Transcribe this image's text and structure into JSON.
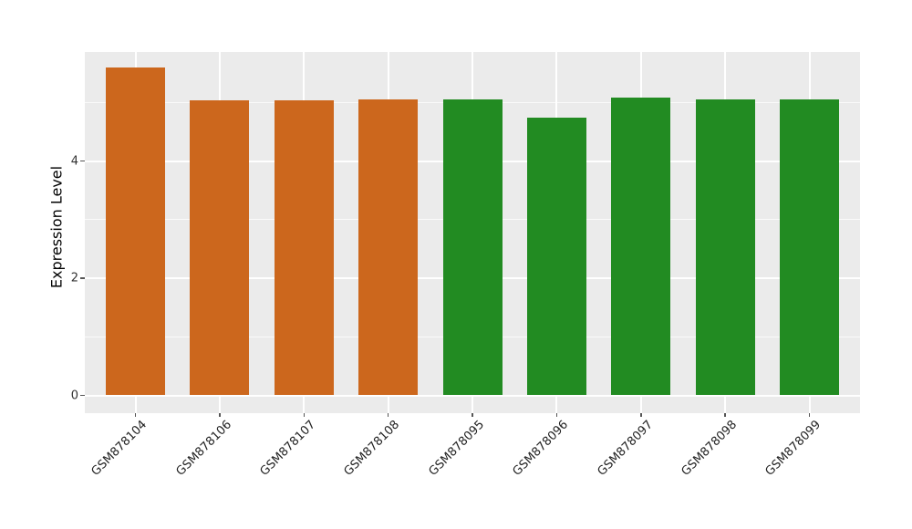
{
  "figure": {
    "background_color": "#ffffff",
    "panel_background_color": "#ebebeb",
    "grid_color": "#ffffff",
    "tick_color": "#555555",
    "tick_label_color": "#333333",
    "axis_title_color": "#000000"
  },
  "chart_data": {
    "type": "bar",
    "title": "",
    "xlabel": "",
    "ylabel": "Expression Level",
    "categories": [
      "GSM878104",
      "GSM878106",
      "GSM878107",
      "GSM878108",
      "GSM878095",
      "GSM878096",
      "GSM878097",
      "GSM878098",
      "GSM878099"
    ],
    "values": [
      5.6,
      5.04,
      5.04,
      5.05,
      5.06,
      4.74,
      5.08,
      5.05,
      5.05
    ],
    "bar_colors": [
      "#cc671d",
      "#cc671d",
      "#cc671d",
      "#cc671d",
      "#228b22",
      "#228b22",
      "#228b22",
      "#228b22",
      "#228b22"
    ],
    "color_groups": [
      {
        "color": "#cc671d",
        "categories": [
          "GSM878104",
          "GSM878106",
          "GSM878107",
          "GSM878108"
        ]
      },
      {
        "color": "#228b22",
        "categories": [
          "GSM878095",
          "GSM878096",
          "GSM878097",
          "GSM878098",
          "GSM878099"
        ]
      }
    ],
    "ylim": [
      -0.28,
      5.88
    ],
    "yticks_major": [
      0,
      2,
      4
    ],
    "yticks_minor": [
      1,
      3,
      5
    ],
    "ytick_labels": [
      "0",
      "2",
      "4"
    ],
    "grid": true,
    "legend": false,
    "x_tick_label_rotation_deg": 45
  }
}
